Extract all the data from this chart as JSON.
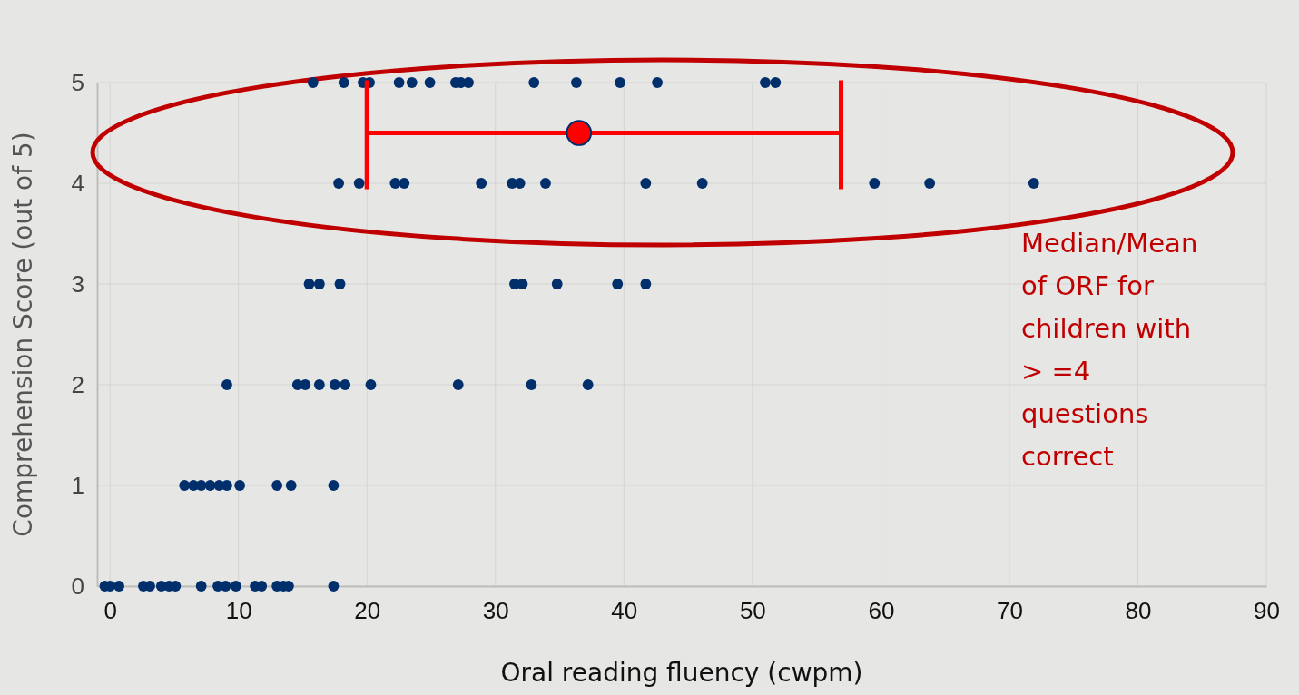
{
  "chart_data": {
    "type": "scatter",
    "xlabel": "Oral reading fluency (cwpm)",
    "ylabel": "Comprehension Score (out of 5)",
    "xlim": [
      -1,
      90
    ],
    "xticks": [
      0,
      10,
      20,
      30,
      40,
      50,
      60,
      70,
      80,
      90
    ],
    "ylim": [
      0,
      5
    ],
    "yticks": [
      0,
      1,
      2,
      3,
      4,
      5
    ],
    "grid": true,
    "marker": "circle",
    "series": [
      {
        "color": "#002f6c",
        "x": [
          15.8,
          18.2,
          19.7,
          20.2,
          22.5,
          23.5,
          24.9,
          26.9,
          27.3,
          27.9,
          33.0,
          36.3,
          39.7,
          42.6,
          51.0,
          51.8,
          17.8,
          19.4,
          22.2,
          22.9,
          28.9,
          31.3,
          31.9,
          33.9,
          41.7,
          46.1,
          59.5,
          63.8,
          71.9,
          15.5,
          16.3,
          17.9,
          31.5,
          32.1,
          34.8,
          39.5,
          41.7,
          9.1,
          14.6,
          15.2,
          16.3,
          17.5,
          18.3,
          20.3,
          27.1,
          32.8,
          37.2,
          5.8,
          6.5,
          7.1,
          7.8,
          8.5,
          9.1,
          10.1,
          13.0,
          14.1,
          17.4,
          -0.4,
          0.0,
          0.7,
          2.6,
          3.1,
          4.0,
          4.6,
          5.1,
          7.1,
          8.4,
          9.0,
          9.8,
          11.3,
          11.8,
          13.0,
          13.5,
          13.9,
          17.4
        ],
        "values": [
          5,
          5,
          5,
          5,
          5,
          5,
          5,
          5,
          5,
          5,
          5,
          5,
          5,
          5,
          5,
          5,
          4,
          4,
          4,
          4,
          4,
          4,
          4,
          4,
          4,
          4,
          4,
          4,
          4,
          3,
          3,
          3,
          3,
          3,
          3,
          3,
          3,
          2,
          2,
          2,
          2,
          2,
          2,
          2,
          2,
          2,
          2,
          1,
          1,
          1,
          1,
          1,
          1,
          1,
          1,
          1,
          1,
          0,
          0,
          0,
          0,
          0,
          0,
          0,
          0,
          0,
          0,
          0,
          0,
          0,
          0,
          0,
          0,
          0,
          0
        ]
      },
      {
        "color": "#ff0000",
        "x": [
          36.5
        ],
        "values": [
          4.5
        ],
        "xerrors": [
          [
            20.0,
            56.9
          ]
        ]
      }
    ],
    "annotations": [
      "Median/Mean of ORF for children with > =4 questions correct"
    ]
  }
}
